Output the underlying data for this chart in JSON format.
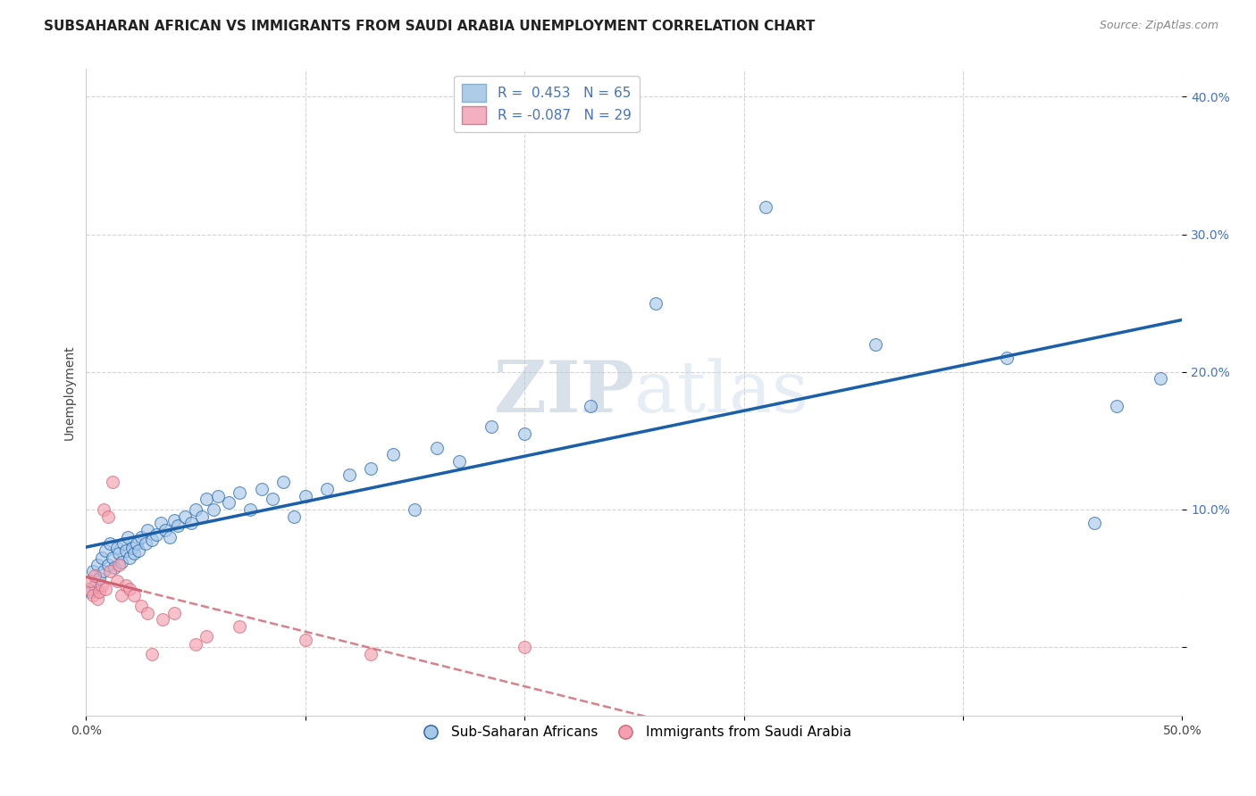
{
  "title": "SUBSAHARAN AFRICAN VS IMMIGRANTS FROM SAUDI ARABIA UNEMPLOYMENT CORRELATION CHART",
  "source": "Source: ZipAtlas.com",
  "ylabel": "Unemployment",
  "xlim": [
    0.0,
    0.5
  ],
  "ylim": [
    -0.05,
    0.42
  ],
  "R_blue": 0.453,
  "N_blue": 65,
  "R_pink": -0.087,
  "N_pink": 29,
  "blue_color": "#a8c8e8",
  "pink_color": "#f4a0b0",
  "line_blue": "#1a5fa8",
  "line_pink": "#d06070",
  "legend_label_blue": "Sub-Saharan Africans",
  "legend_label_pink": "Immigrants from Saudi Arabia",
  "watermark_zip": "ZIP",
  "watermark_atlas": "atlas",
  "blue_x": [
    0.002,
    0.003,
    0.004,
    0.005,
    0.006,
    0.007,
    0.008,
    0.009,
    0.01,
    0.011,
    0.012,
    0.013,
    0.014,
    0.015,
    0.016,
    0.017,
    0.018,
    0.019,
    0.02,
    0.021,
    0.022,
    0.023,
    0.024,
    0.025,
    0.027,
    0.028,
    0.03,
    0.032,
    0.034,
    0.036,
    0.038,
    0.04,
    0.042,
    0.045,
    0.048,
    0.05,
    0.053,
    0.055,
    0.058,
    0.06,
    0.065,
    0.07,
    0.075,
    0.08,
    0.085,
    0.09,
    0.095,
    0.1,
    0.11,
    0.12,
    0.13,
    0.14,
    0.15,
    0.16,
    0.17,
    0.185,
    0.2,
    0.23,
    0.26,
    0.31,
    0.36,
    0.42,
    0.46,
    0.47,
    0.49
  ],
  "blue_y": [
    0.04,
    0.055,
    0.045,
    0.06,
    0.05,
    0.065,
    0.055,
    0.07,
    0.06,
    0.075,
    0.065,
    0.058,
    0.072,
    0.068,
    0.062,
    0.075,
    0.07,
    0.08,
    0.065,
    0.072,
    0.068,
    0.075,
    0.07,
    0.08,
    0.075,
    0.085,
    0.078,
    0.082,
    0.09,
    0.085,
    0.08,
    0.092,
    0.088,
    0.095,
    0.09,
    0.1,
    0.095,
    0.108,
    0.1,
    0.11,
    0.105,
    0.112,
    0.1,
    0.115,
    0.108,
    0.12,
    0.095,
    0.11,
    0.115,
    0.125,
    0.13,
    0.14,
    0.1,
    0.145,
    0.135,
    0.16,
    0.155,
    0.175,
    0.25,
    0.32,
    0.22,
    0.21,
    0.09,
    0.175,
    0.195
  ],
  "pink_x": [
    0.001,
    0.002,
    0.003,
    0.004,
    0.005,
    0.006,
    0.007,
    0.008,
    0.009,
    0.01,
    0.011,
    0.012,
    0.014,
    0.015,
    0.016,
    0.018,
    0.02,
    0.022,
    0.025,
    0.028,
    0.03,
    0.035,
    0.04,
    0.05,
    0.055,
    0.07,
    0.1,
    0.13,
    0.2
  ],
  "pink_y": [
    0.042,
    0.048,
    0.038,
    0.052,
    0.035,
    0.04,
    0.045,
    0.1,
    0.042,
    0.095,
    0.055,
    0.12,
    0.048,
    0.06,
    0.038,
    0.045,
    0.042,
    0.038,
    0.03,
    0.025,
    -0.005,
    0.02,
    0.025,
    0.002,
    0.008,
    0.015,
    0.005,
    -0.005,
    0.0
  ],
  "tick_color": "#4472c4",
  "grid_color": "#d0d0d0",
  "title_fontsize": 11,
  "source_fontsize": 9,
  "axis_fontsize": 10,
  "legend_fontsize": 11
}
